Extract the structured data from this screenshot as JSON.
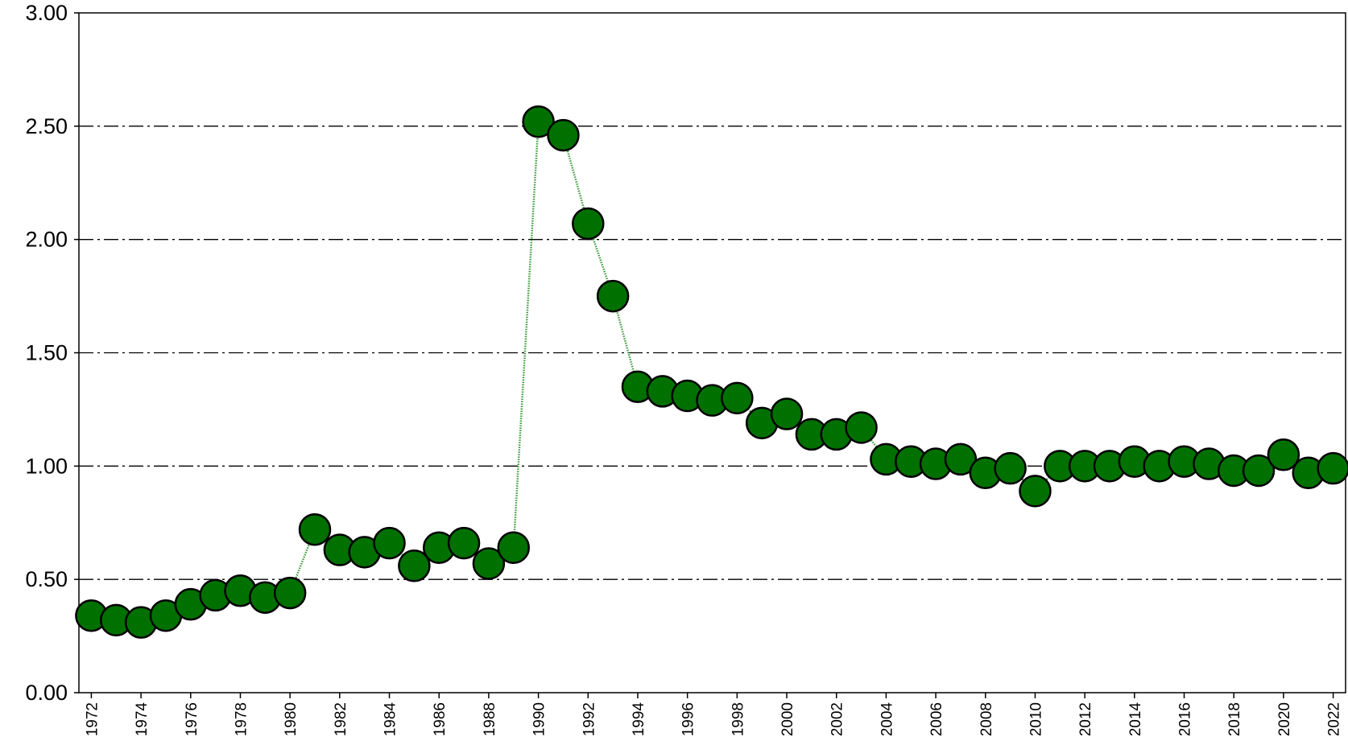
{
  "chart_data": {
    "type": "line",
    "x": [
      1972,
      1973,
      1974,
      1975,
      1976,
      1977,
      1978,
      1979,
      1980,
      1981,
      1982,
      1983,
      1984,
      1985,
      1986,
      1987,
      1988,
      1989,
      1990,
      1991,
      1992,
      1993,
      1994,
      1995,
      1996,
      1997,
      1998,
      1999,
      2000,
      2001,
      2002,
      2003,
      2004,
      2005,
      2006,
      2007,
      2008,
      2009,
      2010,
      2011,
      2012,
      2013,
      2014,
      2015,
      2016,
      2017,
      2018,
      2019,
      2020,
      2021,
      2022
    ],
    "series": [
      {
        "color": "#007000",
        "line_color": "#3a9a3a",
        "values": [
          0.34,
          0.32,
          0.31,
          0.34,
          0.39,
          0.43,
          0.45,
          0.42,
          0.44,
          0.72,
          0.63,
          0.62,
          0.66,
          0.56,
          0.64,
          0.66,
          0.57,
          0.64,
          2.52,
          2.46,
          2.07,
          1.75,
          1.35,
          1.33,
          1.31,
          1.29,
          1.3,
          1.19,
          1.23,
          1.14,
          1.14,
          1.17,
          1.03,
          1.02,
          1.01,
          1.03,
          0.97,
          0.99,
          0.89,
          1.0,
          1.0,
          1.0,
          1.02,
          1.0,
          1.02,
          1.01,
          0.98,
          0.98,
          1.05,
          0.97,
          0.99
        ]
      }
    ],
    "xlim": [
      1971.5,
      2022.5
    ],
    "xticks": [
      1972,
      1974,
      1976,
      1978,
      1980,
      1982,
      1984,
      1986,
      1988,
      1990,
      1992,
      1994,
      1996,
      1998,
      2000,
      2002,
      2004,
      2006,
      2008,
      2010,
      2012,
      2014,
      2016,
      2018,
      2020,
      2022
    ],
    "ylim": [
      0,
      3
    ],
    "yticks": [
      {
        "value": 0,
        "label": "0.00"
      },
      {
        "value": 0.5,
        "label": "0.50"
      },
      {
        "value": 1,
        "label": "1.00"
      },
      {
        "value": 1.5,
        "label": "1.50"
      },
      {
        "value": 2,
        "label": "2.00"
      },
      {
        "value": 2.5,
        "label": "2.50"
      },
      {
        "value": 3,
        "label": "3.00"
      }
    ],
    "grid": true
  }
}
